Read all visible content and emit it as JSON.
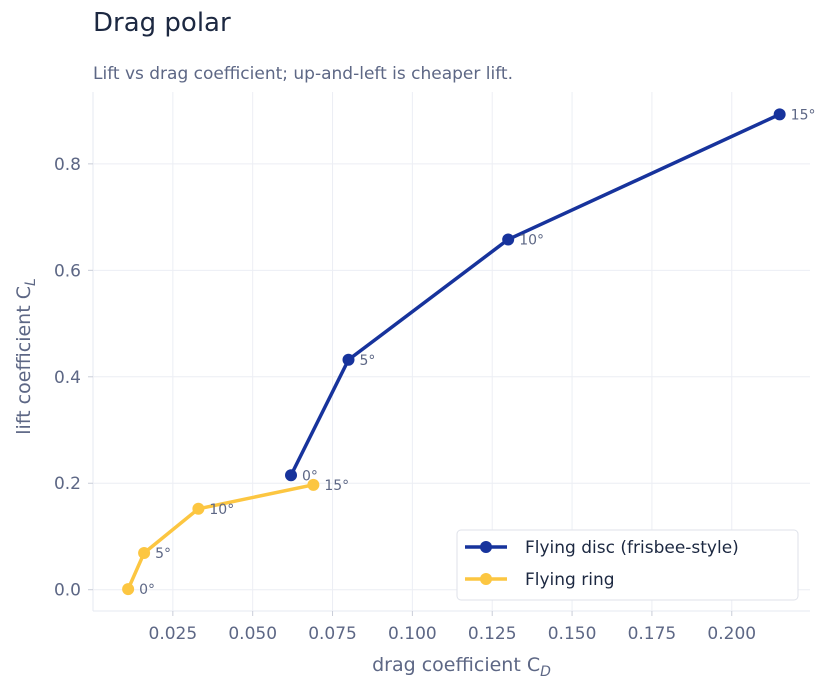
{
  "title": "Drag polar",
  "subtitle": "Lift vs drag coefficient; up-and-left is cheaper lift.",
  "chart_data": {
    "type": "line",
    "xlabel": "drag coefficient  C",
    "xlabel_sub": "D",
    "ylabel": "lift coefficient  C",
    "ylabel_sub": "L",
    "xlim": [
      0.0,
      0.2245
    ],
    "ylim": [
      -0.04,
      0.935
    ],
    "xticks": [
      0.025,
      0.05,
      0.075,
      0.1,
      0.125,
      0.15,
      0.175,
      0.2
    ],
    "xtick_labels": [
      "0.025",
      "0.050",
      "0.075",
      "0.100",
      "0.125",
      "0.150",
      "0.175",
      "0.200"
    ],
    "yticks": [
      0.0,
      0.2,
      0.4,
      0.6,
      0.8
    ],
    "ytick_labels": [
      "0.0",
      "0.2",
      "0.4",
      "0.6",
      "0.8"
    ],
    "grid": true,
    "legend_position": "bottom-right",
    "series": [
      {
        "name": "Flying disc (frisbee-style)",
        "color": "#17339c",
        "x": [
          0.062,
          0.08,
          0.13,
          0.215
        ],
        "y": [
          0.215,
          0.432,
          0.658,
          0.893
        ],
        "labels": [
          "0°",
          "5°",
          "10°",
          "15°"
        ]
      },
      {
        "name": "Flying ring",
        "color": "#fcc641",
        "x": [
          0.011,
          0.016,
          0.033,
          0.069
        ],
        "y": [
          0.001,
          0.069,
          0.152,
          0.197
        ],
        "labels": [
          "0°",
          "5°",
          "10°",
          "15°"
        ]
      }
    ]
  }
}
